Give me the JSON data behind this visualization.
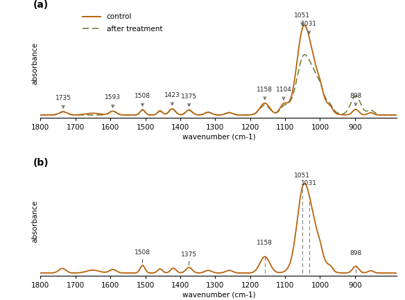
{
  "title_a": "(a)",
  "title_b": "(b)",
  "xlabel": "wavenumber (cm-1)",
  "ylabel": "absorbance",
  "line_color_solid": "#b8620a",
  "line_color_dashed": "#6b7a2a",
  "legend_solid": "control",
  "legend_dashed": "after treatment",
  "xticks": [
    1800,
    1700,
    1600,
    1500,
    1400,
    1300,
    1200,
    1100,
    1000,
    900
  ],
  "xtick_labels": [
    "1800",
    "1700",
    "1600",
    "1500",
    "1400",
    "1300",
    "1200",
    "1100",
    "1000",
    "900"
  ]
}
